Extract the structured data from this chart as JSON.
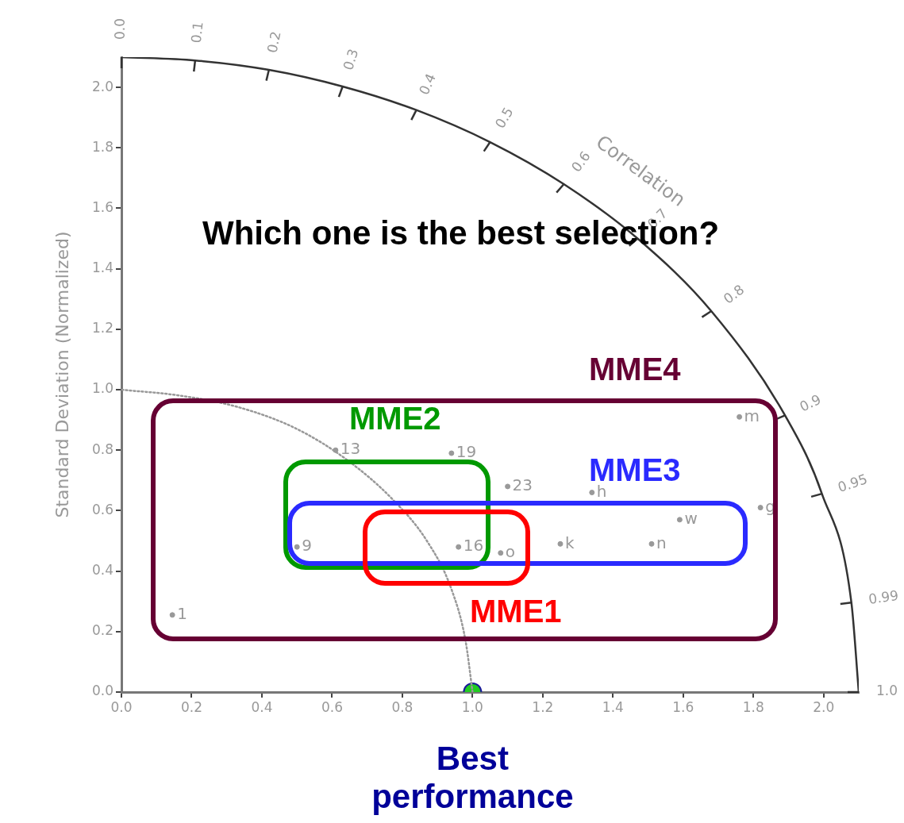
{
  "chart_data": {
    "type": "scatter",
    "title": "Which one is the best selection?",
    "ylabel": "Standard Deviation (Normalized)",
    "annotations": [
      "MME4",
      "MME2",
      "MME3",
      "MME1",
      "Correlation",
      "0.0",
      "0.1",
      "0.2",
      "0.3",
      "0.4",
      "0.5",
      "0.6",
      "0.7",
      "0.8",
      "0.9",
      "0.95",
      "0.99",
      "1.0"
    ],
    "xlim": [
      0,
      2.1
    ],
    "ylim": [
      0,
      2.1
    ],
    "xticks": [
      {
        "value": 0,
        "label": "0.0"
      },
      {
        "value": 0.2,
        "label": "0.2"
      },
      {
        "value": 0.4,
        "label": "0.4"
      },
      {
        "value": 0.6,
        "label": "0.6"
      },
      {
        "value": 0.8,
        "label": "0.8"
      },
      {
        "value": 1,
        "label": "1.0"
      },
      {
        "value": 1.2,
        "label": "1.2"
      },
      {
        "value": 1.4,
        "label": "1.4"
      },
      {
        "value": 1.6,
        "label": "1.6"
      },
      {
        "value": 1.8,
        "label": "1.8"
      },
      {
        "value": 2,
        "label": "2.0"
      }
    ],
    "yticks": [
      {
        "value": 0,
        "label": "0.0"
      },
      {
        "value": 0.2,
        "label": "0.2"
      },
      {
        "value": 0.4,
        "label": "0.4"
      },
      {
        "value": 0.6,
        "label": "0.6"
      },
      {
        "value": 0.8,
        "label": "0.8"
      },
      {
        "value": 1,
        "label": "1.0"
      },
      {
        "value": 1.2,
        "label": "1.2"
      },
      {
        "value": 1.4,
        "label": "1.4"
      },
      {
        "value": 1.6,
        "label": "1.6"
      },
      {
        "value": 1.8,
        "label": "1.8"
      },
      {
        "value": 2,
        "label": "2.0"
      }
    ],
    "series": [
      {
        "type": "line",
        "marker": "none",
        "line_style": "solid",
        "color": "#333333",
        "x": [
          0,
          0.21,
          0.42,
          0.63,
          0.84,
          1.05,
          1.26,
          1.47,
          1.68,
          1.89,
          1.995,
          2.079,
          2.1
        ],
        "values": [
          2.1,
          2.089,
          2.058,
          2.003,
          1.925,
          1.819,
          1.68,
          1.5,
          1.26,
          0.915,
          0.656,
          0.296,
          0
        ]
      },
      {
        "type": "line",
        "marker": "none",
        "line_style": "dotted",
        "color": "#999999",
        "x": [
          1,
          0.98,
          0.94,
          0.87,
          0.77,
          0.64,
          0.5,
          0.34,
          0.17,
          0
        ],
        "values": [
          0,
          0.17,
          0.34,
          0.5,
          0.64,
          0.77,
          0.87,
          0.94,
          0.98,
          1
        ]
      },
      {
        "type": "scatter",
        "marker": "circle",
        "name": "1",
        "color": "#999999",
        "x": [
          0.145
        ],
        "values": [
          0.255
        ]
      },
      {
        "type": "scatter",
        "marker": "circle",
        "name": "13",
        "color": "#999999",
        "x": [
          0.61
        ],
        "values": [
          0.8
        ]
      },
      {
        "type": "scatter",
        "marker": "circle",
        "name": "19",
        "color": "#999999",
        "x": [
          0.94
        ],
        "values": [
          0.79
        ]
      },
      {
        "type": "scatter",
        "marker": "circle",
        "name": "23",
        "color": "#999999",
        "x": [
          1.1
        ],
        "values": [
          0.68
        ]
      },
      {
        "type": "scatter",
        "marker": "circle",
        "name": "9",
        "color": "#999999",
        "x": [
          0.5
        ],
        "values": [
          0.48
        ]
      },
      {
        "type": "scatter",
        "marker": "circle",
        "name": "16",
        "color": "#999999",
        "x": [
          0.96
        ],
        "values": [
          0.48
        ]
      },
      {
        "type": "scatter",
        "marker": "circle",
        "name": "m",
        "color": "#999999",
        "x": [
          1.76
        ],
        "values": [
          0.91
        ]
      },
      {
        "type": "scatter",
        "marker": "circle",
        "name": "g",
        "color": "#999999",
        "x": [
          1.82
        ],
        "values": [
          0.61
        ]
      },
      {
        "type": "scatter",
        "marker": "circle",
        "name": "h",
        "color": "#999999",
        "x": [
          1.34
        ],
        "values": [
          0.66
        ]
      },
      {
        "type": "scatter",
        "marker": "circle",
        "name": "w",
        "color": "#999999",
        "x": [
          1.59
        ],
        "values": [
          0.57
        ]
      },
      {
        "type": "scatter",
        "marker": "circle",
        "name": "n",
        "color": "#999999",
        "x": [
          1.51
        ],
        "values": [
          0.49
        ]
      },
      {
        "type": "scatter",
        "marker": "circle",
        "name": "k",
        "color": "#999999",
        "x": [
          1.25
        ],
        "values": [
          0.49
        ]
      },
      {
        "type": "scatter",
        "marker": "circle",
        "name": "o",
        "color": "#999999",
        "x": [
          1.08
        ],
        "values": [
          0.46
        ]
      },
      {
        "type": "scatter",
        "marker": "circle",
        "name": "Best performance",
        "color": "#22cc22",
        "x": [
          1
        ],
        "values": [
          0
        ]
      }
    ],
    "grid": false,
    "legend": false
  }
}
